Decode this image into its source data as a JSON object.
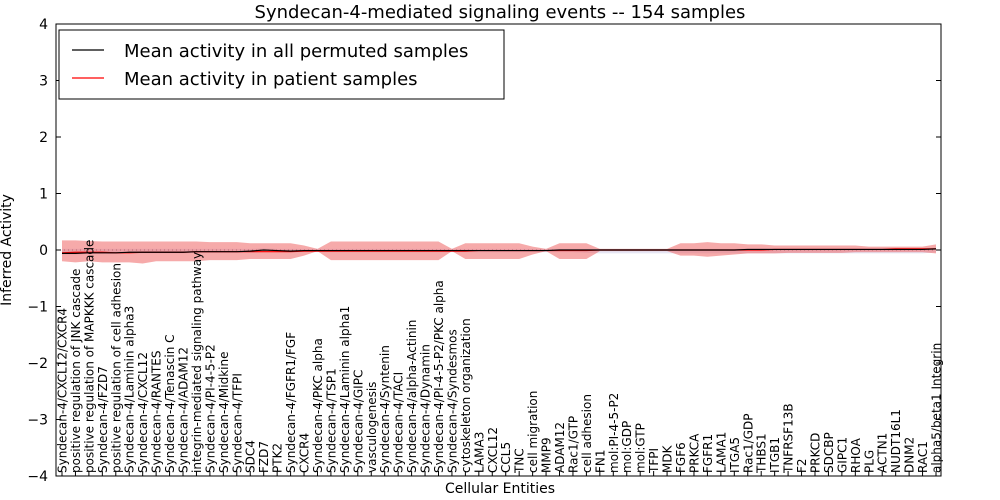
{
  "chart_data": {
    "type": "line",
    "title": "Syndecan-4-mediated signaling events -- 154 samples",
    "xlabel": "Cellular Entities",
    "ylabel": "Inferred Activity",
    "ylim": [
      -4,
      4
    ],
    "yticks": [
      "4",
      "3",
      "2",
      "1",
      "0",
      "−1",
      "−2",
      "−3",
      "−4"
    ],
    "ytick_values": [
      4,
      3,
      2,
      1,
      0,
      -1,
      -2,
      -3,
      -4
    ],
    "legend": {
      "placement": "top-left",
      "entries": [
        {
          "label": "Mean activity in all permuted samples",
          "color": "#000000"
        },
        {
          "label": "Mean activity in patient samples",
          "color": "#ff0000"
        }
      ]
    },
    "categories": [
      "Syndecan-4/CXCL12/CXCR4",
      "positive regulation of JNK cascade",
      "positive regulation of MAPKKK cascade",
      "Syndecan-4/FZD7",
      "positive regulation of cell adhesion",
      "Syndecan-4/Laminin alpha3",
      "Syndecan-4/CXCL12",
      "Syndecan-4/RANTES",
      "Syndecan-4/Tenascin C",
      "Syndecan-4/ADAM12",
      "integrin-mediated signaling pathway",
      "Syndecan-4/PI-4-5-P2",
      "Syndecan-4/Midkine",
      "Syndecan-4/TFPI",
      "SDC4",
      "FZD7",
      "PTK2",
      "Syndecan-4/FGFR1/FGF",
      "CXCR4",
      "Syndecan-4/PKC alpha",
      "Syndecan-4/TSP1",
      "Syndecan-4/Laminin alpha1",
      "Syndecan-4/GIPC",
      "vasculogenesis",
      "Syndecan-4/Syntenin",
      "Syndecan-4/TACI",
      "Syndecan-4/alpha-Actinin",
      "Syndecan-4/Dynamin",
      "Syndecan-4/PI-4-5-P2/PKC alpha",
      "Syndecan-4/Syndesmos",
      "cytoskeleton organization",
      "LAMA3",
      "CXCL12",
      "CCL5",
      "TNC",
      "cell migration",
      "MMP9",
      "ADAM12",
      "Rac1/GTP",
      "cell adhesion",
      "FN1",
      "mol:PI-4-5-P2",
      "mol:GDP",
      "mol:GTP",
      "TFPI",
      "MDK",
      "FGF6",
      "PRKCA",
      "FGFR1",
      "LAMA1",
      "ITGA5",
      "Rac1/GDP",
      "THBS1",
      "ITGB1",
      "TNFRSF13B",
      "F2",
      "PRKCD",
      "SDCBP",
      "GIPC1",
      "RHOA",
      "PLG",
      "ACTN1",
      "NUDT16L1",
      "DNM2",
      "RAC1",
      "alpha5/beta1 Integrin"
    ],
    "series": [
      {
        "name": "Mean activity in patient samples",
        "color": "#ff0000",
        "values": [
          -0.05,
          -0.04,
          -0.04,
          -0.04,
          -0.05,
          -0.05,
          -0.04,
          -0.04,
          -0.04,
          -0.04,
          -0.03,
          -0.03,
          -0.03,
          -0.03,
          -0.03,
          -0.03,
          -0.03,
          -0.03,
          -0.02,
          -0.02,
          -0.02,
          -0.02,
          -0.02,
          -0.02,
          -0.02,
          -0.02,
          -0.02,
          -0.02,
          -0.02,
          -0.02,
          -0.02,
          -0.01,
          -0.01,
          -0.01,
          -0.01,
          -0.01,
          -0.01,
          -0.01,
          -0.01,
          -0.01,
          0.0,
          0.0,
          0.0,
          0.0,
          0.0,
          0.0,
          0.0,
          0.0,
          0.0,
          0.0,
          0.0,
          0.0,
          0.0,
          0.01,
          0.01,
          0.01,
          0.01,
          0.01,
          0.01,
          0.01,
          0.01,
          0.01,
          0.02,
          0.02,
          0.02,
          0.02
        ],
        "band_upper": [
          0.17,
          0.17,
          0.16,
          0.15,
          0.15,
          0.15,
          0.15,
          0.15,
          0.15,
          0.15,
          0.15,
          0.14,
          0.14,
          0.14,
          0.12,
          0.12,
          0.12,
          0.12,
          0.08,
          0.02,
          0.15,
          0.15,
          0.15,
          0.15,
          0.15,
          0.15,
          0.15,
          0.15,
          0.15,
          0.02,
          0.12,
          0.12,
          0.12,
          0.12,
          0.12,
          0.06,
          0.02,
          0.12,
          0.12,
          0.12,
          0.02,
          0.02,
          0.02,
          0.02,
          0.02,
          0.02,
          0.12,
          0.12,
          0.14,
          0.12,
          0.12,
          0.1,
          0.1,
          0.08,
          0.08,
          0.08,
          0.08,
          0.08,
          0.08,
          0.08,
          0.06,
          0.06,
          0.06,
          0.06,
          0.06,
          0.1
        ],
        "band_lower": [
          -0.2,
          -0.22,
          -0.2,
          -0.22,
          -0.22,
          -0.22,
          -0.24,
          -0.2,
          -0.2,
          -0.2,
          -0.2,
          -0.18,
          -0.18,
          -0.18,
          -0.16,
          -0.16,
          -0.16,
          -0.16,
          -0.1,
          -0.02,
          -0.18,
          -0.18,
          -0.18,
          -0.18,
          -0.18,
          -0.18,
          -0.18,
          -0.18,
          -0.18,
          -0.02,
          -0.16,
          -0.16,
          -0.16,
          -0.16,
          -0.16,
          -0.08,
          -0.02,
          -0.16,
          -0.16,
          -0.16,
          -0.02,
          -0.02,
          -0.02,
          -0.02,
          -0.02,
          -0.02,
          -0.1,
          -0.1,
          -0.12,
          -0.1,
          -0.08,
          -0.06,
          -0.06,
          -0.06,
          -0.05,
          -0.05,
          -0.05,
          -0.05,
          -0.05,
          -0.04,
          -0.04,
          -0.04,
          -0.04,
          -0.04,
          -0.04,
          -0.06
        ]
      },
      {
        "name": "Mean activity in all permuted samples",
        "color": "#000000",
        "values": [
          -0.06,
          -0.06,
          -0.05,
          -0.05,
          -0.05,
          -0.04,
          -0.04,
          -0.04,
          -0.04,
          -0.04,
          -0.03,
          -0.03,
          -0.03,
          -0.03,
          -0.02,
          0.0,
          -0.01,
          -0.02,
          -0.01,
          -0.01,
          -0.01,
          -0.01,
          -0.01,
          -0.01,
          -0.01,
          -0.01,
          -0.01,
          -0.01,
          -0.01,
          -0.01,
          -0.01,
          -0.01,
          -0.01,
          -0.01,
          -0.01,
          -0.01,
          -0.01,
          0.0,
          0.0,
          0.0,
          0.0,
          0.0,
          0.0,
          0.0,
          0.0,
          0.0,
          0.0,
          0.0,
          0.0,
          0.0,
          0.0,
          0.01,
          0.01,
          0.01,
          0.01,
          0.01,
          0.01,
          0.01,
          0.01,
          0.01,
          0.01,
          0.01,
          0.01,
          0.01,
          0.01,
          0.02
        ],
        "band_upper": [
          0.02,
          0.02,
          0.02,
          0.02,
          0.02,
          0.02,
          0.02,
          0.02,
          0.02,
          0.02,
          0.02,
          0.02,
          0.02,
          0.02,
          0.02,
          0.03,
          0.02,
          0.02,
          0.02,
          0.02,
          0.02,
          0.02,
          0.02,
          0.02,
          0.02,
          0.02,
          0.02,
          0.02,
          0.02,
          0.02,
          0.02,
          0.02,
          0.02,
          0.02,
          0.02,
          0.02,
          0.02,
          0.02,
          0.02,
          0.02,
          0.02,
          0.02,
          0.02,
          0.02,
          0.02,
          0.02,
          0.02,
          0.02,
          0.02,
          0.02,
          0.02,
          0.03,
          0.03,
          0.03,
          0.03,
          0.03,
          0.03,
          0.03,
          0.03,
          0.03,
          0.03,
          0.03,
          0.03,
          0.03,
          0.03,
          0.04
        ],
        "band_lower": [
          -0.08,
          -0.08,
          -0.07,
          -0.07,
          -0.07,
          -0.06,
          -0.06,
          -0.06,
          -0.06,
          -0.06,
          -0.05,
          -0.05,
          -0.05,
          -0.05,
          -0.05,
          -0.04,
          -0.04,
          -0.04,
          -0.04,
          -0.04,
          -0.04,
          -0.04,
          -0.04,
          -0.04,
          -0.04,
          -0.04,
          -0.04,
          -0.04,
          -0.04,
          -0.04,
          -0.04,
          -0.04,
          -0.04,
          -0.04,
          -0.04,
          -0.04,
          -0.04,
          -0.04,
          -0.04,
          -0.05,
          -0.06,
          -0.06,
          -0.06,
          -0.06,
          -0.06,
          -0.06,
          -0.06,
          -0.06,
          -0.06,
          -0.06,
          -0.06,
          -0.06,
          -0.06,
          -0.06,
          -0.06,
          -0.06,
          -0.06,
          -0.06,
          -0.06,
          -0.06,
          -0.06,
          -0.06,
          -0.06,
          -0.06,
          -0.06,
          -0.04
        ]
      }
    ]
  }
}
